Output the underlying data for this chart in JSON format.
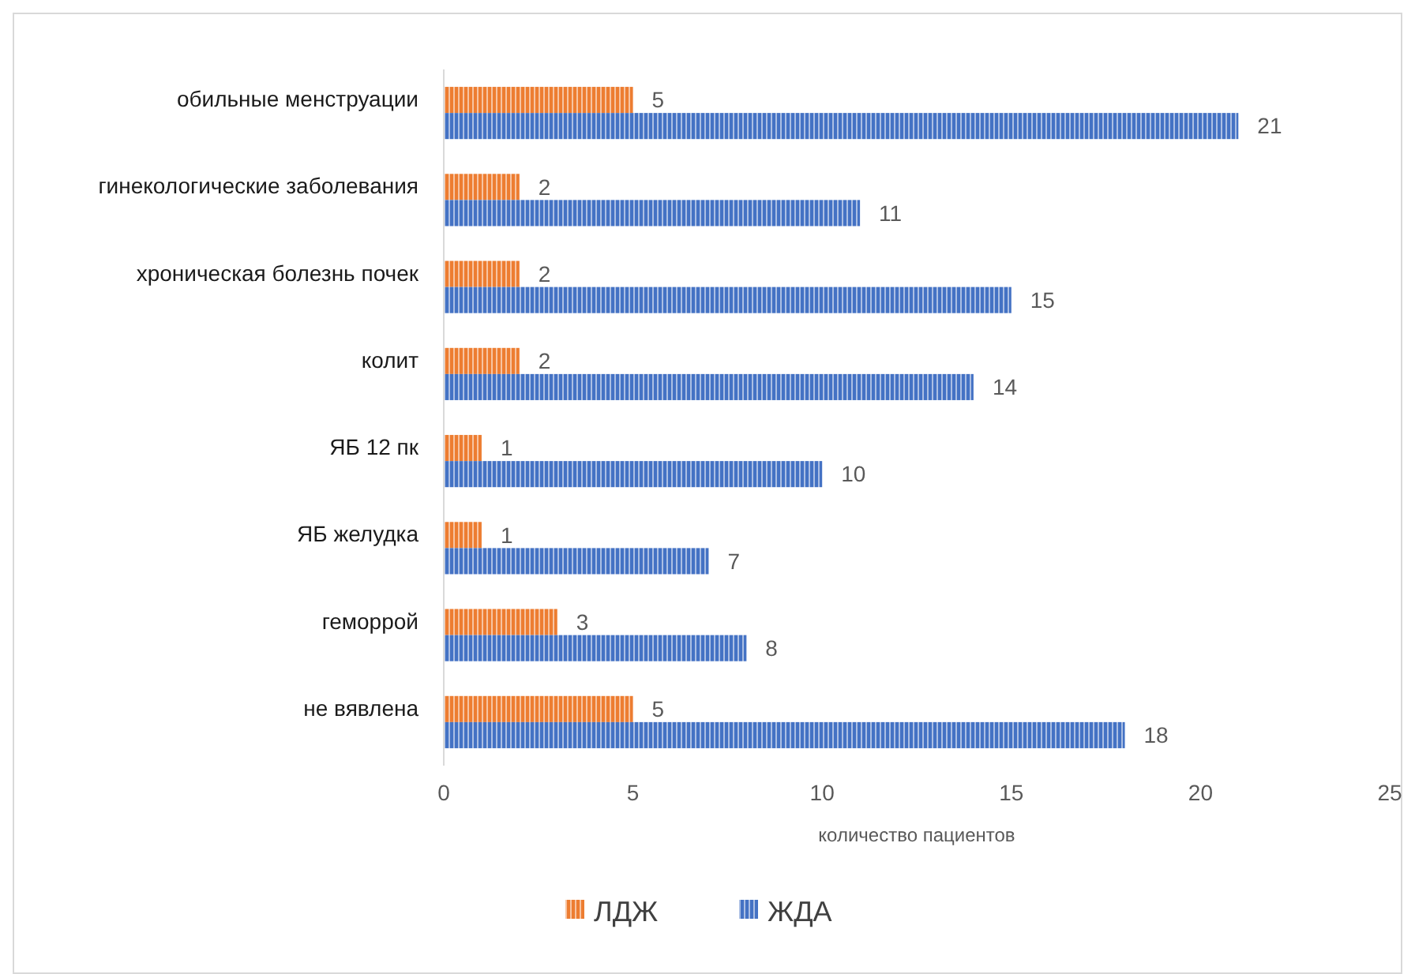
{
  "chart_data": {
    "type": "bar",
    "orientation": "horizontal",
    "xlabel": "количество пациентов",
    "categories": [
      "обильные менструации",
      "гинекологические заболевания",
      "хроническая болезнь почек",
      "колит",
      "ЯБ 12 пк",
      "ЯБ желудка",
      "геморрой",
      "не вявлена"
    ],
    "series": [
      {
        "name": "ЛДЖ",
        "color": "#ed7d31",
        "values": [
          5,
          2,
          2,
          2,
          1,
          1,
          3,
          5
        ]
      },
      {
        "name": "ЖДА",
        "color": "#4472c4",
        "values": [
          21,
          11,
          15,
          14,
          10,
          7,
          8,
          18
        ]
      }
    ],
    "xlim": [
      0,
      25
    ],
    "xticks": [
      0,
      5,
      10,
      15,
      20,
      25
    ],
    "data_labels": true,
    "legend": "bottom",
    "grid": false
  }
}
